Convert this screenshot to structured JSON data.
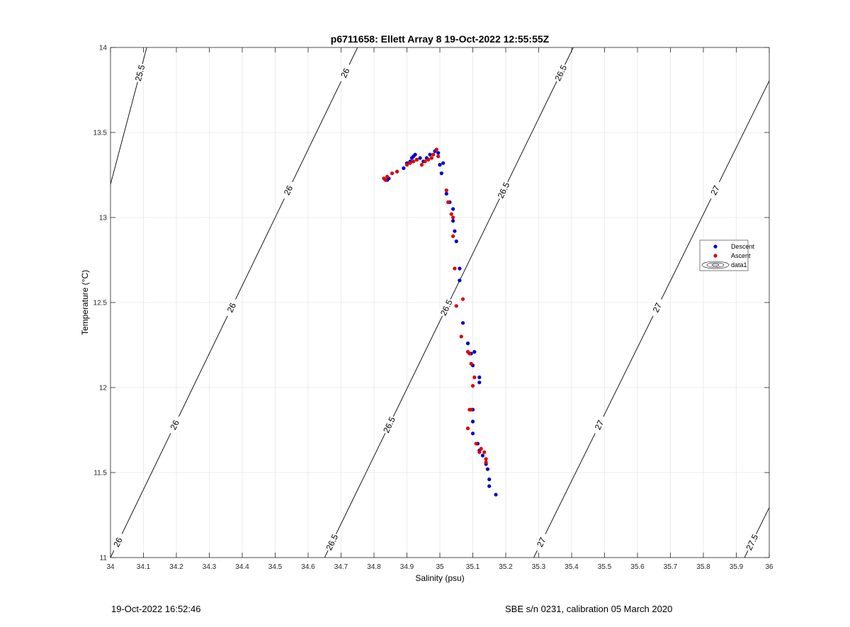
{
  "chart_data": {
    "type": "scatter",
    "title": "p6711658: Ellett Array 8 19-Oct-2022 12:55:55Z",
    "xlabel": "Salinity (psu)",
    "ylabel": "Temperature (°C)",
    "xlim": [
      34,
      36
    ],
    "ylim": [
      11,
      14
    ],
    "x_ticks": [
      34,
      34.1,
      34.2,
      34.3,
      34.4,
      34.5,
      34.6,
      34.7,
      34.8,
      34.9,
      35,
      35.1,
      35.2,
      35.3,
      35.4,
      35.5,
      35.6,
      35.7,
      35.8,
      35.9,
      36
    ],
    "x_tick_labels": [
      "34",
      "34.1",
      "34.2",
      "34.3",
      "34.4",
      "34.5",
      "34.6",
      "34.7",
      "34.8",
      "34.9",
      "35",
      "35.1",
      "35.2",
      "35.3",
      "35.4",
      "35.5",
      "35.6",
      "35.7",
      "35.8",
      "35.9",
      "36"
    ],
    "y_ticks": [
      11,
      11.5,
      12,
      12.5,
      13,
      13.5,
      14
    ],
    "y_tick_labels": [
      "11",
      "11.5",
      "12",
      "12.5",
      "13",
      "13.5",
      "14"
    ],
    "grid": true,
    "legend_position": "right",
    "series": [
      {
        "name": "Descent",
        "color": "#0000cc",
        "x": [
          34.84,
          34.845,
          34.87,
          34.89,
          34.9,
          34.91,
          34.915,
          34.92,
          34.925,
          34.93,
          34.94,
          34.95,
          34.96,
          34.97,
          34.985,
          34.995,
          35,
          35.005,
          35.01,
          35.02,
          35.03,
          35.04,
          35.04,
          35.045,
          35.05,
          35.06,
          35.06,
          35.07,
          35.085,
          35.095,
          35.1,
          35.105,
          35.12,
          35.12,
          35.1,
          35.1,
          35.1,
          35.115,
          35.12,
          35.13,
          35.14,
          35.145,
          35.15,
          35.15,
          35.17
        ],
        "y": [
          13.22,
          13.23,
          13.27,
          13.29,
          13.32,
          13.33,
          13.35,
          13.36,
          13.37,
          13.34,
          13.35,
          13.33,
          13.35,
          13.37,
          13.39,
          13.38,
          13.31,
          13.26,
          13.32,
          13.14,
          13.09,
          13.05,
          12.98,
          12.92,
          12.86,
          12.7,
          12.63,
          12.38,
          12.26,
          12.2,
          12.13,
          12.21,
          12.06,
          12.03,
          11.87,
          11.8,
          11.73,
          11.67,
          11.63,
          11.6,
          11.55,
          11.52,
          11.46,
          11.42,
          11.37
        ]
      },
      {
        "name": "Ascent",
        "color": "#dd0000",
        "x": [
          34.83,
          34.835,
          34.84,
          34.855,
          34.87,
          34.9,
          34.91,
          34.92,
          34.93,
          34.945,
          34.955,
          34.965,
          34.975,
          34.98,
          34.99,
          34.995,
          35.02,
          35.025,
          35.035,
          35.04,
          35.04,
          35.045,
          35.05,
          35.065,
          35.07,
          35.085,
          35.09,
          35.095,
          35.1,
          35.105,
          35.09,
          35.095,
          35.085,
          35.11,
          35.12,
          35.125,
          35.135,
          35.14,
          35.14
        ],
        "y": [
          13.23,
          13.22,
          13.24,
          13.26,
          13.27,
          13.31,
          13.32,
          13.33,
          13.34,
          13.31,
          13.33,
          13.34,
          13.35,
          13.37,
          13.4,
          13.36,
          13.16,
          13.09,
          13.02,
          13.0,
          12.89,
          12.7,
          12.48,
          12.3,
          12.52,
          12.21,
          12.2,
          12.14,
          12.01,
          12.06,
          11.87,
          11.87,
          11.76,
          11.67,
          11.62,
          11.64,
          11.62,
          11.58,
          11.56
        ]
      }
    ],
    "contours": {
      "name": "data1",
      "lines": [
        {
          "level": "25.5",
          "x_at_ymin": 33.7,
          "x_at_ymax": 34.11
        },
        {
          "level": "26",
          "x_at_ymin": 34.0,
          "x_at_ymax": 34.75
        },
        {
          "level": "26.5",
          "x_at_ymin": 34.65,
          "x_at_ymax": 35.405
        },
        {
          "level": "27",
          "x_at_ymin": 35.285,
          "x_at_ymax": 36.05
        },
        {
          "level": "27.5",
          "x_at_ymin": 35.925,
          "x_at_ymax": 36.69
        }
      ],
      "label_positions": [
        {
          "level": "25.5",
          "t": 0.95
        },
        {
          "level": "26",
          "t": 0.95
        },
        {
          "level": "26",
          "t": 0.72
        },
        {
          "level": "26",
          "t": 0.49
        },
        {
          "level": "26",
          "t": 0.26
        },
        {
          "level": "26",
          "t": 0.03
        },
        {
          "level": "26.5",
          "t": 0.95
        },
        {
          "level": "26.5",
          "t": 0.72
        },
        {
          "level": "26.5",
          "t": 0.49
        },
        {
          "level": "26.5",
          "t": 0.26
        },
        {
          "level": "26.5",
          "t": 0.03
        },
        {
          "level": "27",
          "t": 0.72
        },
        {
          "level": "27",
          "t": 0.49
        },
        {
          "level": "27",
          "t": 0.26
        },
        {
          "level": "27",
          "t": 0.03
        },
        {
          "level": "27.5",
          "t": 0.03
        }
      ]
    },
    "legend": [
      "Descent",
      "Ascent",
      "data1"
    ]
  },
  "footer": {
    "left": "19-Oct-2022 16:52:46",
    "right": "SBE s/n 0231, calibration 05 March 2020"
  }
}
